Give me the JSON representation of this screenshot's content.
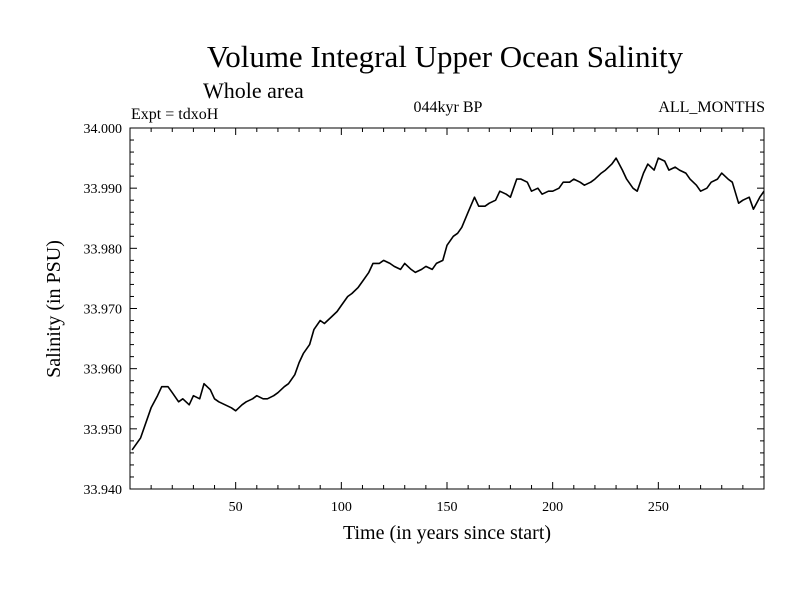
{
  "chart_data": {
    "type": "line",
    "title": "Volume Integral Upper Ocean Salinity",
    "subtitle": "Whole area",
    "annotations": {
      "left": "Expt = tdxoH",
      "center": "044kyr BP",
      "right": "ALL_MONTHS"
    },
    "xlabel": "Time (in years since start)",
    "ylabel": "Salinity (in PSU)",
    "xlim": [
      0,
      300
    ],
    "ylim": [
      33.94,
      34.0
    ],
    "x_ticks": [
      50,
      100,
      150,
      200,
      250
    ],
    "y_ticks": [
      "33.940",
      "33.950",
      "33.960",
      "33.970",
      "33.980",
      "33.990",
      "34.000"
    ],
    "grid": false,
    "series": [
      {
        "color": "#000000",
        "x": [
          1,
          5,
          10,
          13,
          15,
          18,
          20,
          23,
          25,
          28,
          30,
          33,
          35,
          38,
          40,
          42,
          45,
          48,
          50,
          53,
          55,
          58,
          60,
          63,
          65,
          68,
          70,
          73,
          75,
          78,
          80,
          82,
          85,
          87,
          90,
          92,
          95,
          98,
          100,
          103,
          105,
          108,
          110,
          113,
          115,
          118,
          120,
          123,
          125,
          128,
          130,
          133,
          135,
          138,
          140,
          143,
          145,
          148,
          150,
          153,
          155,
          157,
          160,
          163,
          165,
          168,
          170,
          173,
          175,
          178,
          180,
          183,
          185,
          188,
          190,
          193,
          195,
          198,
          200,
          203,
          205,
          208,
          210,
          213,
          215,
          218,
          220,
          223,
          225,
          228,
          230,
          233,
          235,
          238,
          240,
          243,
          245,
          248,
          250,
          253,
          255,
          258,
          260,
          263,
          265,
          268,
          270,
          273,
          275,
          278,
          280,
          283,
          285,
          288,
          290,
          293,
          295,
          298,
          300
        ],
        "y": [
          33.9465,
          33.9485,
          33.9535,
          33.9555,
          33.957,
          33.957,
          33.956,
          33.9545,
          33.955,
          33.954,
          33.9555,
          33.955,
          33.9575,
          33.9565,
          33.955,
          33.9545,
          33.954,
          33.9535,
          33.953,
          33.954,
          33.9545,
          33.955,
          33.9555,
          33.955,
          33.955,
          33.9555,
          33.956,
          33.957,
          33.9575,
          33.959,
          33.961,
          33.9625,
          33.964,
          33.9665,
          33.968,
          33.9675,
          33.9685,
          33.9695,
          33.9705,
          33.972,
          33.9725,
          33.9735,
          33.9745,
          33.976,
          33.9775,
          33.9775,
          33.978,
          33.9775,
          33.977,
          33.9765,
          33.9775,
          33.9765,
          33.976,
          33.9765,
          33.977,
          33.9765,
          33.9775,
          33.978,
          33.9805,
          33.982,
          33.9825,
          33.9835,
          33.986,
          33.9885,
          33.987,
          33.987,
          33.9875,
          33.988,
          33.9895,
          33.989,
          33.9885,
          33.9915,
          33.9915,
          33.991,
          33.9895,
          33.99,
          33.989,
          33.9895,
          33.9895,
          33.99,
          33.991,
          33.991,
          33.9915,
          33.991,
          33.9905,
          33.991,
          33.9915,
          33.9925,
          33.993,
          33.994,
          33.995,
          33.993,
          33.9915,
          33.99,
          33.9895,
          33.9925,
          33.994,
          33.993,
          33.995,
          33.9945,
          33.993,
          33.9935,
          33.993,
          33.9925,
          33.9915,
          33.9905,
          33.9895,
          33.99,
          33.991,
          33.9915,
          33.9925,
          33.9915,
          33.991,
          33.9875,
          33.988,
          33.9885,
          33.9865,
          33.9885,
          33.9895
        ]
      }
    ]
  }
}
